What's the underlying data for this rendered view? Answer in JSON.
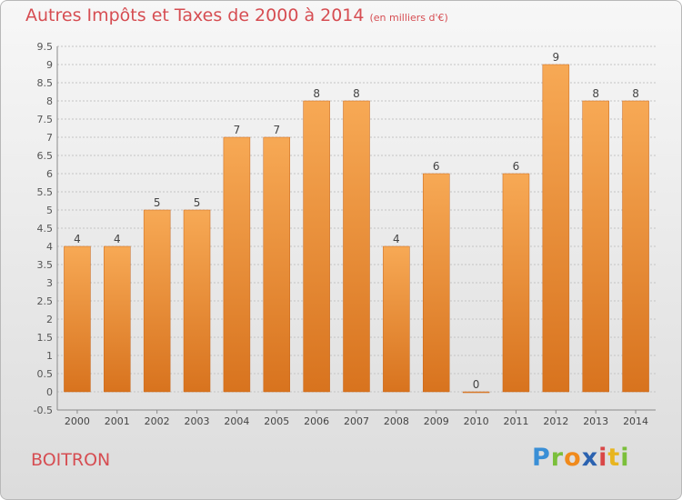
{
  "title": "Autres Impôts et Taxes de 2000 à 2014",
  "unit": "(en milliers d'€)",
  "location": "BOITRON",
  "brand": {
    "letters": [
      "P",
      "r",
      "o",
      "x",
      "i",
      "t",
      "i"
    ],
    "colors": [
      "#3a8fd6",
      "#7bbf3b",
      "#f08a1c",
      "#2b62b0",
      "#d94747",
      "#e8b51f",
      "#7bbf3b"
    ]
  },
  "colors": {
    "bar_top": "#f7a955",
    "bar_bottom": "#d8731e",
    "bar_edge": "#c8661a",
    "grid": "#c4c4c4",
    "axis": "#8a8a8a",
    "title": "#d64d52"
  },
  "chart_data": {
    "type": "bar",
    "categories": [
      "2000",
      "2001",
      "2002",
      "2003",
      "2004",
      "2005",
      "2006",
      "2007",
      "2008",
      "2009",
      "2010",
      "2011",
      "2012",
      "2013",
      "2014"
    ],
    "values": [
      4,
      4,
      5,
      5,
      7,
      7,
      8,
      8,
      4,
      6,
      0,
      6,
      9,
      8,
      8
    ],
    "data_labels": [
      "4",
      "4",
      "5",
      "5",
      "7",
      "7",
      "8",
      "8",
      "4",
      "6",
      "0",
      "6",
      "9",
      "8",
      "8"
    ],
    "yticks": [
      "-0.5",
      "0",
      "0.5",
      "1",
      "1.5",
      "2",
      "2.5",
      "3",
      "3.5",
      "4",
      "4.5",
      "5",
      "5.5",
      "6",
      "6.5",
      "7",
      "7.5",
      "8",
      "8.5",
      "9",
      "9.5"
    ],
    "ylim": [
      -0.5,
      9.5
    ],
    "grid": true,
    "title": "Autres Impôts et Taxes de 2000 à 2014",
    "xlabel": "",
    "ylabel": ""
  }
}
